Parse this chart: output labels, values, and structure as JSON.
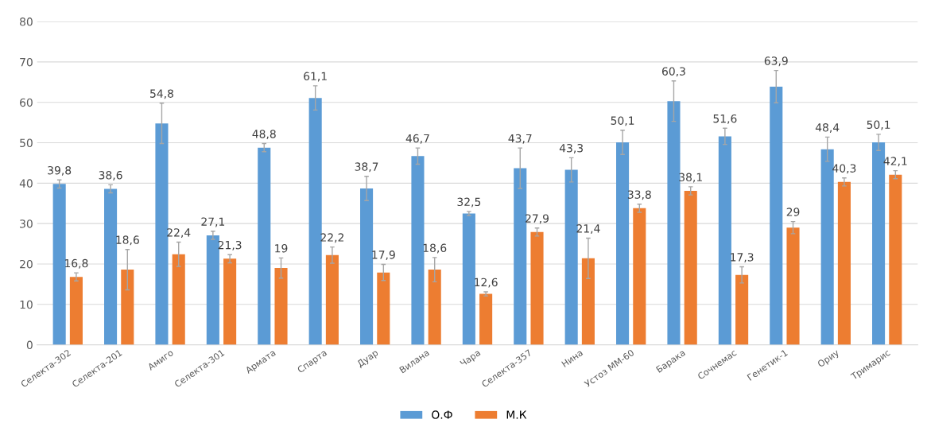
{
  "chart_data": {
    "type": "bar",
    "categories": [
      "Селекта-302",
      "Селекта-201",
      "Амиго",
      "Селекта-301",
      "Армата",
      "Спарта",
      "Дуар",
      "Вилана",
      "Чара",
      "Селекта-357",
      "Нина",
      "Устоз ММ-60",
      "Барака",
      "Сочнемас",
      "Генетик-1",
      "Ориу",
      "Тримарис"
    ],
    "series": [
      {
        "name": "О.Ф",
        "color": "#5b9bd5",
        "values": [
          39.8,
          38.6,
          54.8,
          27.1,
          48.8,
          61.1,
          38.7,
          46.7,
          32.5,
          43.7,
          43.3,
          50.1,
          60.3,
          51.6,
          63.9,
          48.4,
          50.1
        ],
        "value_labels": [
          "39,8",
          "38,6",
          "54,8",
          "27,1",
          "48,8",
          "61,1",
          "38,7",
          "46,7",
          "32,5",
          "43,7",
          "43,3",
          "50,1",
          "60,3",
          "51,6",
          "63,9",
          "48,4",
          "50,1"
        ],
        "errors": [
          1,
          1,
          5,
          1,
          1,
          3,
          3,
          2,
          0.5,
          5,
          3,
          3,
          5,
          2,
          4,
          3,
          2
        ]
      },
      {
        "name": "М.К",
        "color": "#ed7d31",
        "values": [
          16.8,
          18.6,
          22.4,
          21.3,
          19,
          22.2,
          17.9,
          18.6,
          12.6,
          27.9,
          21.4,
          33.8,
          38.1,
          17.3,
          29,
          40.3,
          42.1
        ],
        "value_labels": [
          "16,8",
          "18,6",
          "22,4",
          "21,3",
          "19",
          "22,2",
          "17,9",
          "18,6",
          "12,6",
          "27,9",
          "21,4",
          "33,8",
          "38,1",
          "17,3",
          "29",
          "40,3",
          "42,1"
        ],
        "errors": [
          1,
          5,
          3,
          1,
          2.5,
          2,
          2,
          3,
          0.5,
          1,
          5,
          1,
          1,
          2,
          1.5,
          1,
          1
        ]
      }
    ],
    "ylim": [
      0,
      80
    ],
    "yticks": [
      0,
      10,
      20,
      30,
      40,
      50,
      60,
      70,
      80
    ],
    "grid": "y",
    "legend": "bottom"
  }
}
